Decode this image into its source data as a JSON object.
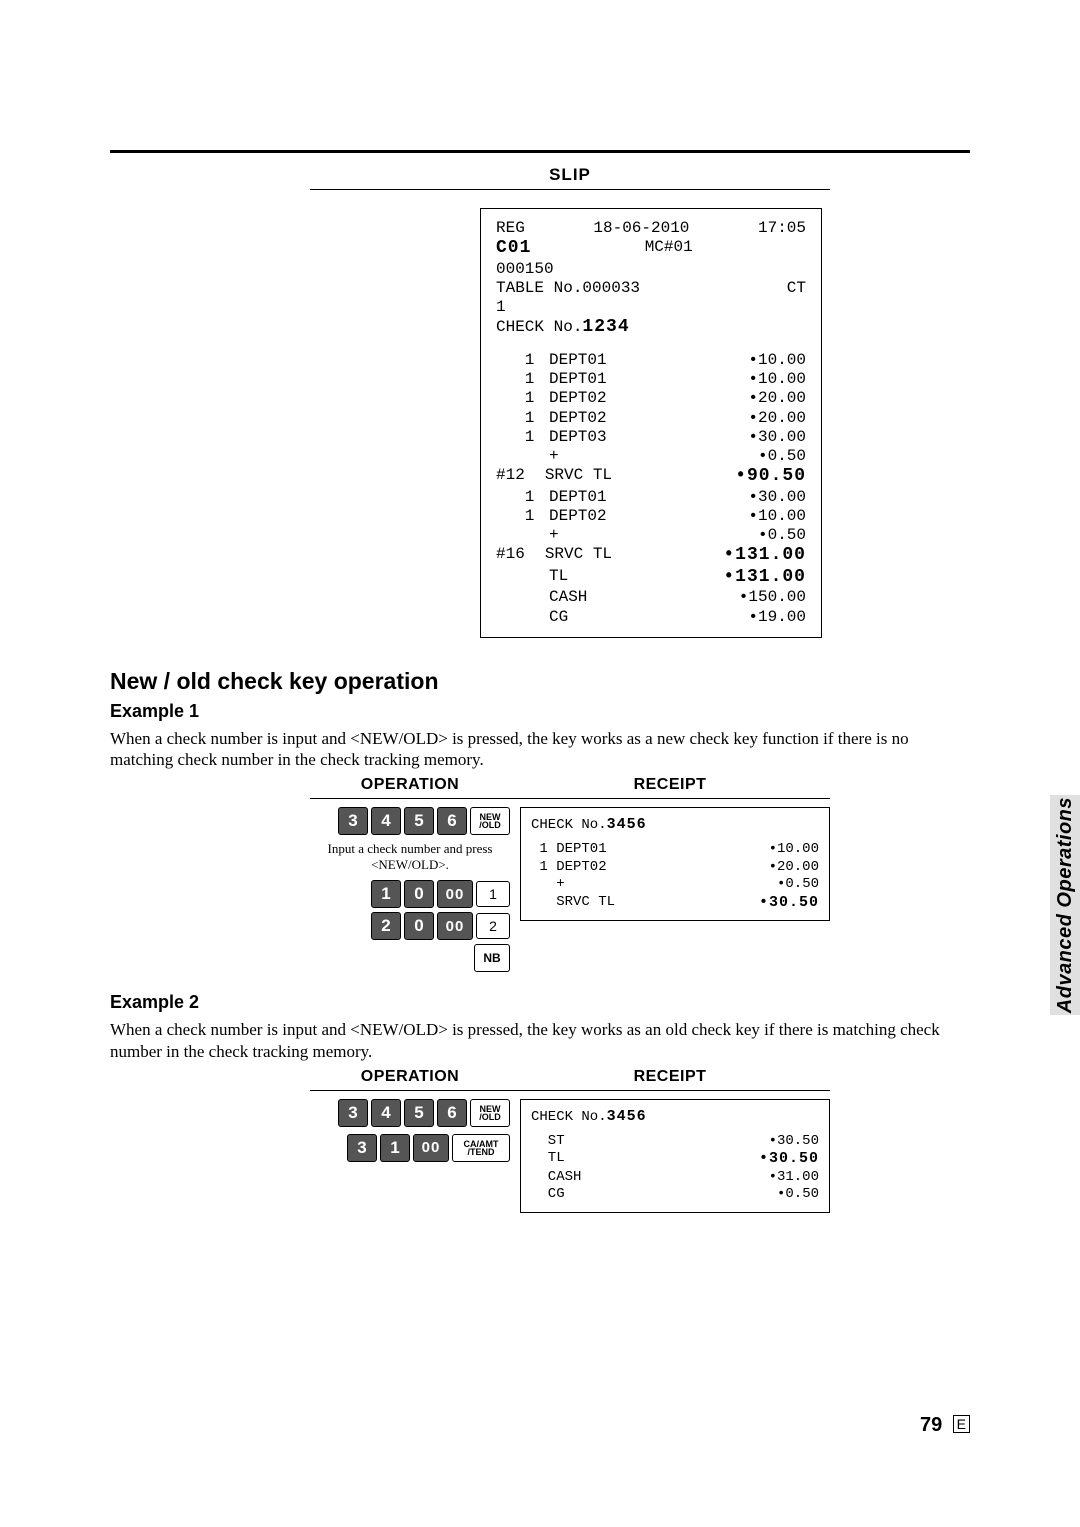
{
  "slip_title": "SLIP",
  "slip": {
    "hdr_l": "REG",
    "hdr_c": "18-06-2010",
    "hdr_r": "17:05",
    "ln2_l": "C01",
    "ln2_c": "MC#01",
    "ln3": "000150",
    "ln4_l": "TABLE No.000033",
    "ln4_r": "CT",
    "ln5": "1",
    "check_label": "CHECK No.",
    "check_no": "1234",
    "items_a": [
      {
        "l": "   1",
        "m": "DEPT01",
        "r": "•10.00"
      },
      {
        "l": "   1",
        "m": "DEPT01",
        "r": "•10.00"
      },
      {
        "l": "   1",
        "m": "DEPT02",
        "r": "•20.00"
      },
      {
        "l": "   1",
        "m": "DEPT02",
        "r": "•20.00"
      },
      {
        "l": "   1",
        "m": "DEPT03",
        "r": "•30.00"
      },
      {
        "l": "    ",
        "m": "+",
        "r": "•0.50"
      }
    ],
    "srv1_l": "#12",
    "srv1_m": "SRVC TL",
    "srv1_r": "•90.50",
    "items_b": [
      {
        "l": "   1",
        "m": "DEPT01",
        "r": "•30.00"
      },
      {
        "l": "   1",
        "m": "DEPT02",
        "r": "•10.00"
      },
      {
        "l": "    ",
        "m": "+",
        "r": "•0.50"
      }
    ],
    "srv2_l": "#16",
    "srv2_m": "SRVC TL",
    "srv2_r": "•131.00",
    "tl_m": "TL",
    "tl_r": "•131.00",
    "cash_m": "CASH",
    "cash_r": "•150.00",
    "cg_m": "CG",
    "cg_r": "•19.00"
  },
  "h2": "New / old check key operation",
  "ex1_title": "Example 1",
  "ex1_text": "When a check number is input and <NEW/OLD> is pressed, the key works as a new check key function if there is no matching check number in the check tracking memory.",
  "op_label": "OPERATION",
  "rec_label": "RECEIPT",
  "ex1": {
    "keys_row1": [
      "3",
      "4",
      "5",
      "6"
    ],
    "fn1": "NEW\n/OLD",
    "caption": "Input a check number and press <NEW/OLD>.",
    "keys_row2": [
      "1",
      "0",
      "00"
    ],
    "dept1": "1",
    "keys_row3": [
      "2",
      "0",
      "00"
    ],
    "dept2": "2",
    "nb": "NB",
    "receipt": {
      "check_label": "CHECK No.",
      "check_no": "3456",
      "lines": [
        {
          "l": " 1 DEPT01",
          "r": "•10.00"
        },
        {
          "l": " 1 DEPT02",
          "r": "•20.00"
        },
        {
          "l": "   +",
          "r": "•0.50"
        }
      ],
      "tot_l": "   SRVC TL",
      "tot_r": "•30.50"
    }
  },
  "ex2_title": "Example 2",
  "ex2_text": "When a check number is input and <NEW/OLD> is pressed, the key works as an old check key if there is matching check number in the check tracking memory.",
  "ex2": {
    "keys_row1": [
      "3",
      "4",
      "5",
      "6"
    ],
    "fn1": "NEW\n/OLD",
    "keys_row2": [
      "3",
      "1",
      "00"
    ],
    "fn2": "CA/AMT\n/TEND",
    "receipt": {
      "check_label": "CHECK No.",
      "check_no": "3456",
      "lines": [
        {
          "l": "  ST",
          "r": "•30.50"
        }
      ],
      "tl_l": "  TL",
      "tl_r": "•30.50",
      "cash_l": "  CASH",
      "cash_r": "•31.00",
      "cg_l": "  CG",
      "cg_r": "•0.50"
    }
  },
  "side": "Advanced Operations",
  "page_num": "79",
  "page_letter": "E"
}
